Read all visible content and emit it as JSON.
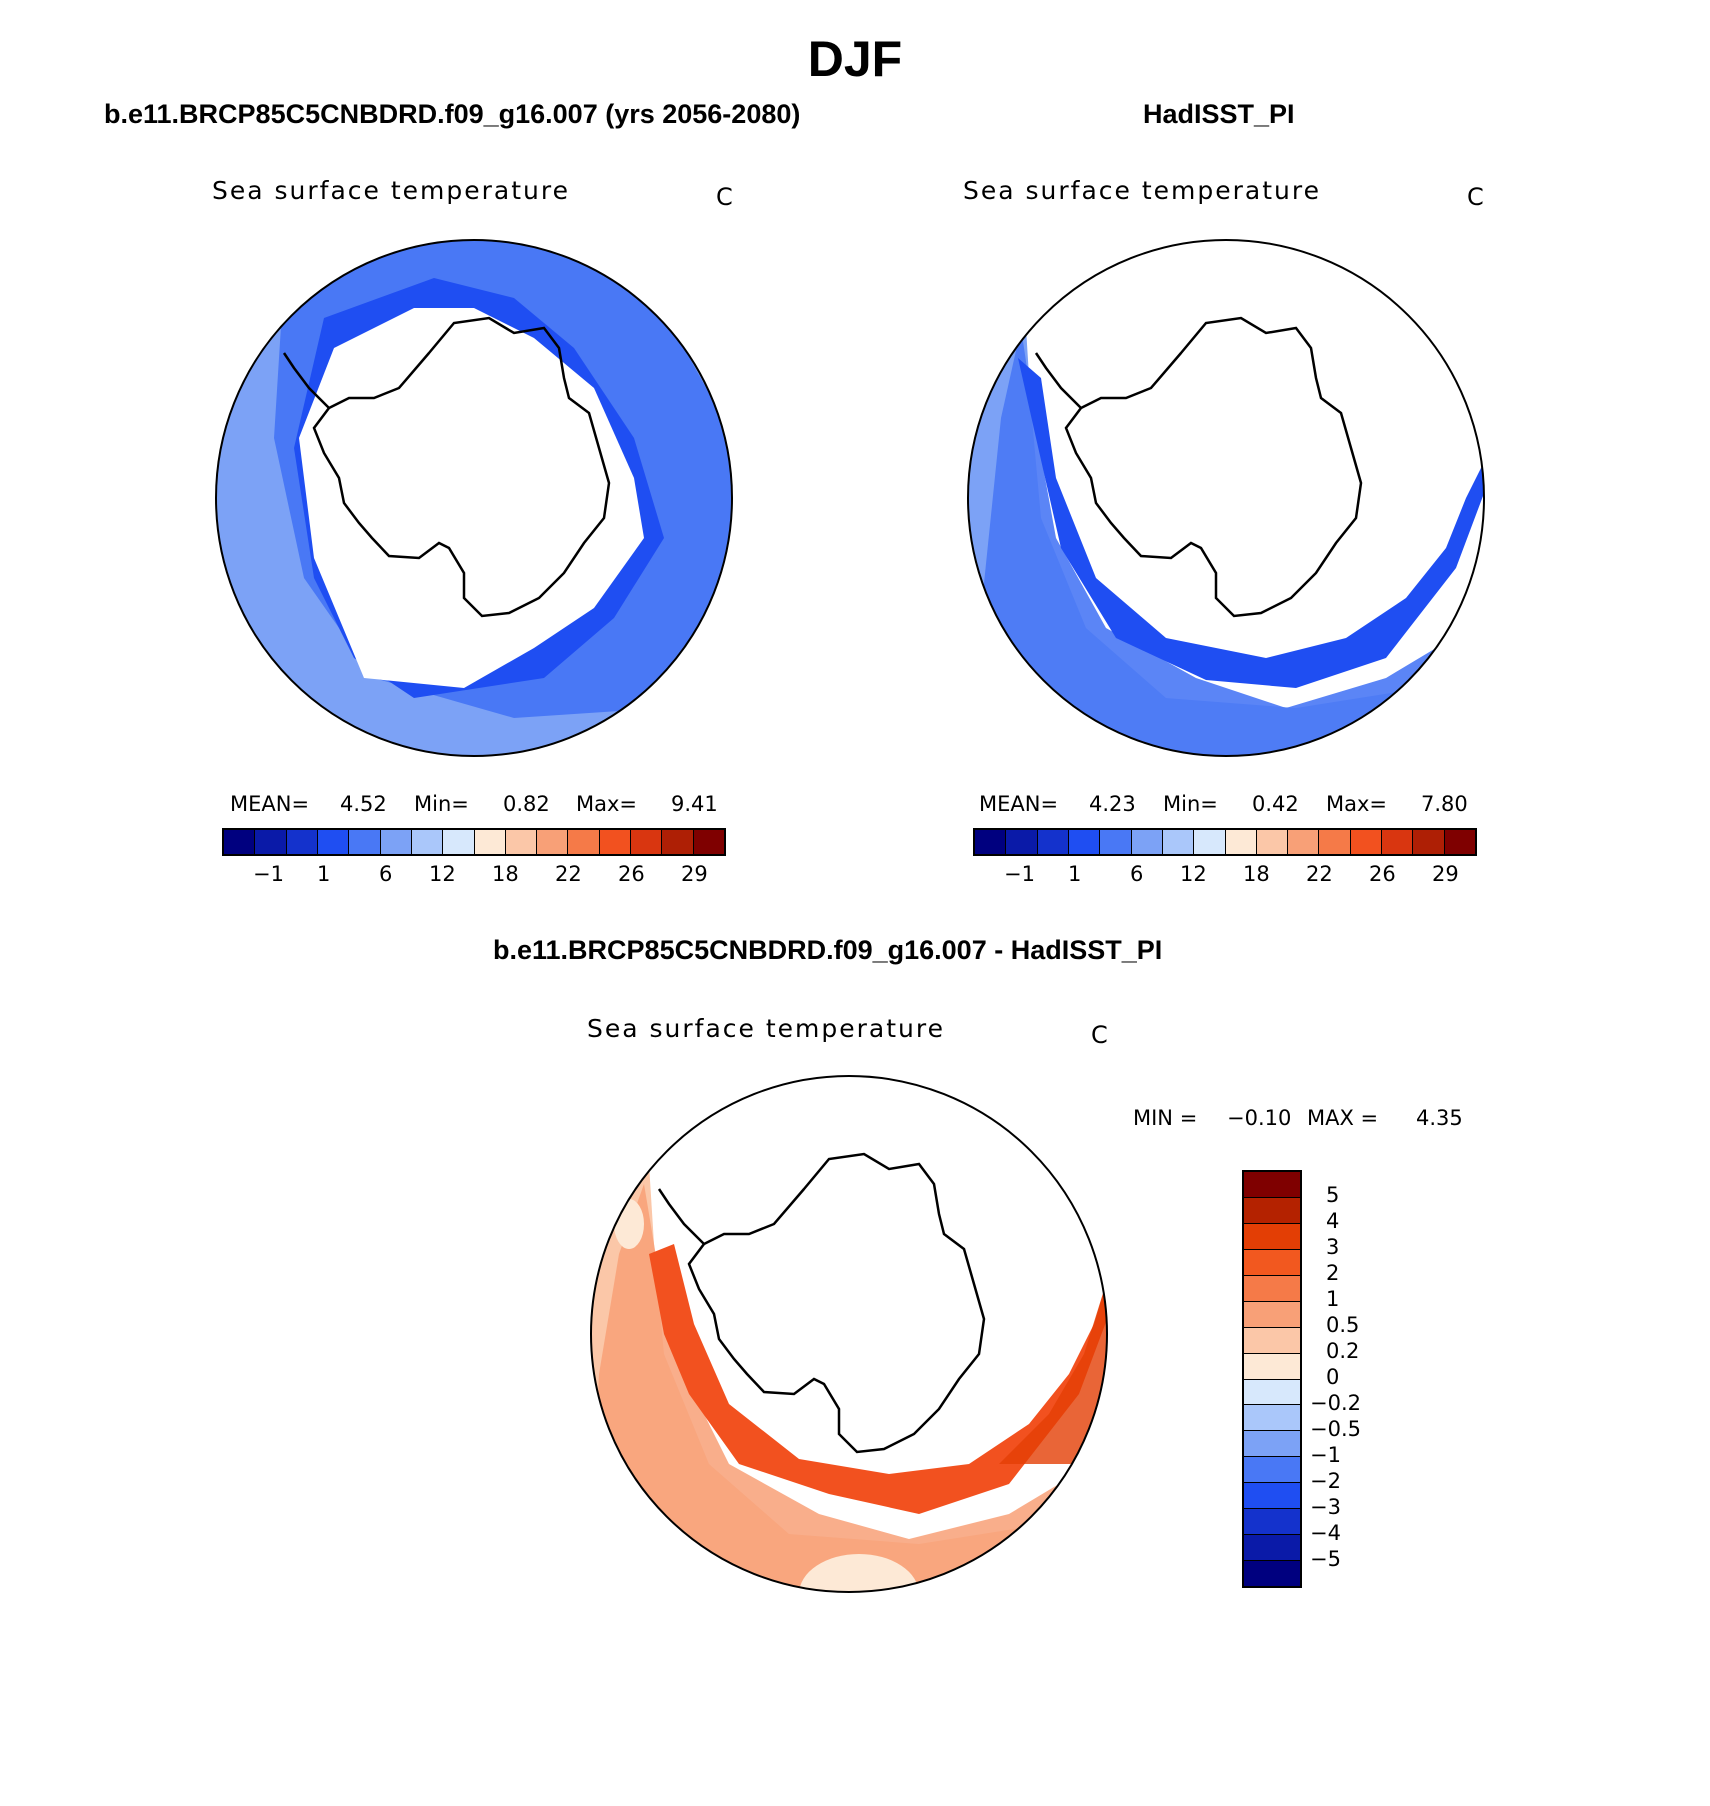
{
  "figure": {
    "title": "DJF",
    "panel1_title": "b.e11.BRCP85C5CNBDRD.f09_g16.007 (yrs 2056-2080)",
    "panel2_title": "HadISST_PI",
    "diff_title": "b.e11.BRCP85C5CNBDRD.f09_g16.007 - HadISST_PI"
  },
  "panels": [
    {
      "variable": "Sea surface temperature",
      "units": "C",
      "stats": {
        "mean_label": "MEAN=",
        "mean": "4.52",
        "min_label": "Min=",
        "min": "0.82",
        "max_label": "Max=",
        "max": "9.41"
      }
    },
    {
      "variable": "Sea surface temperature",
      "units": "C",
      "stats": {
        "mean_label": "MEAN=",
        "mean": "4.23",
        "min_label": "Min=",
        "min": "0.42",
        "max_label": "Max=",
        "max": "7.80"
      }
    },
    {
      "variable": "Sea surface temperature",
      "units": "C",
      "stats": {
        "min_label": "MIN =",
        "min": "−0.10",
        "max_label": "MAX =",
        "max": "4.35"
      }
    }
  ],
  "colorbar_abs": {
    "colors": [
      "#00007f",
      "#0a1aa8",
      "#1432cc",
      "#1f4ef2",
      "#4978f5",
      "#7ca2f6",
      "#aac7fa",
      "#d7e8fc",
      "#fde9d6",
      "#fbc7a8",
      "#f8a077",
      "#f57a48",
      "#f2511f",
      "#d93610",
      "#ae1f05",
      "#7f0000"
    ],
    "tick_labels": [
      "−1",
      "1",
      "6",
      "12",
      "18",
      "22",
      "26",
      "29"
    ]
  },
  "colorbar_diff": {
    "colors": [
      "#7f0000",
      "#b42200",
      "#e33e05",
      "#f2581f",
      "#f57a48",
      "#f8a077",
      "#fbc7a8",
      "#fde9d6",
      "#d7e8fc",
      "#aac7fa",
      "#7ca2f6",
      "#4978f5",
      "#1f4ef2",
      "#1432cc",
      "#0a1aa8",
      "#00007f"
    ],
    "tick_labels": [
      "5",
      "4",
      "3",
      "2",
      "1",
      "0.5",
      "0.2",
      "0",
      "−0.2",
      "−0.5",
      "−1",
      "−2",
      "−3",
      "−4",
      "−5"
    ]
  }
}
